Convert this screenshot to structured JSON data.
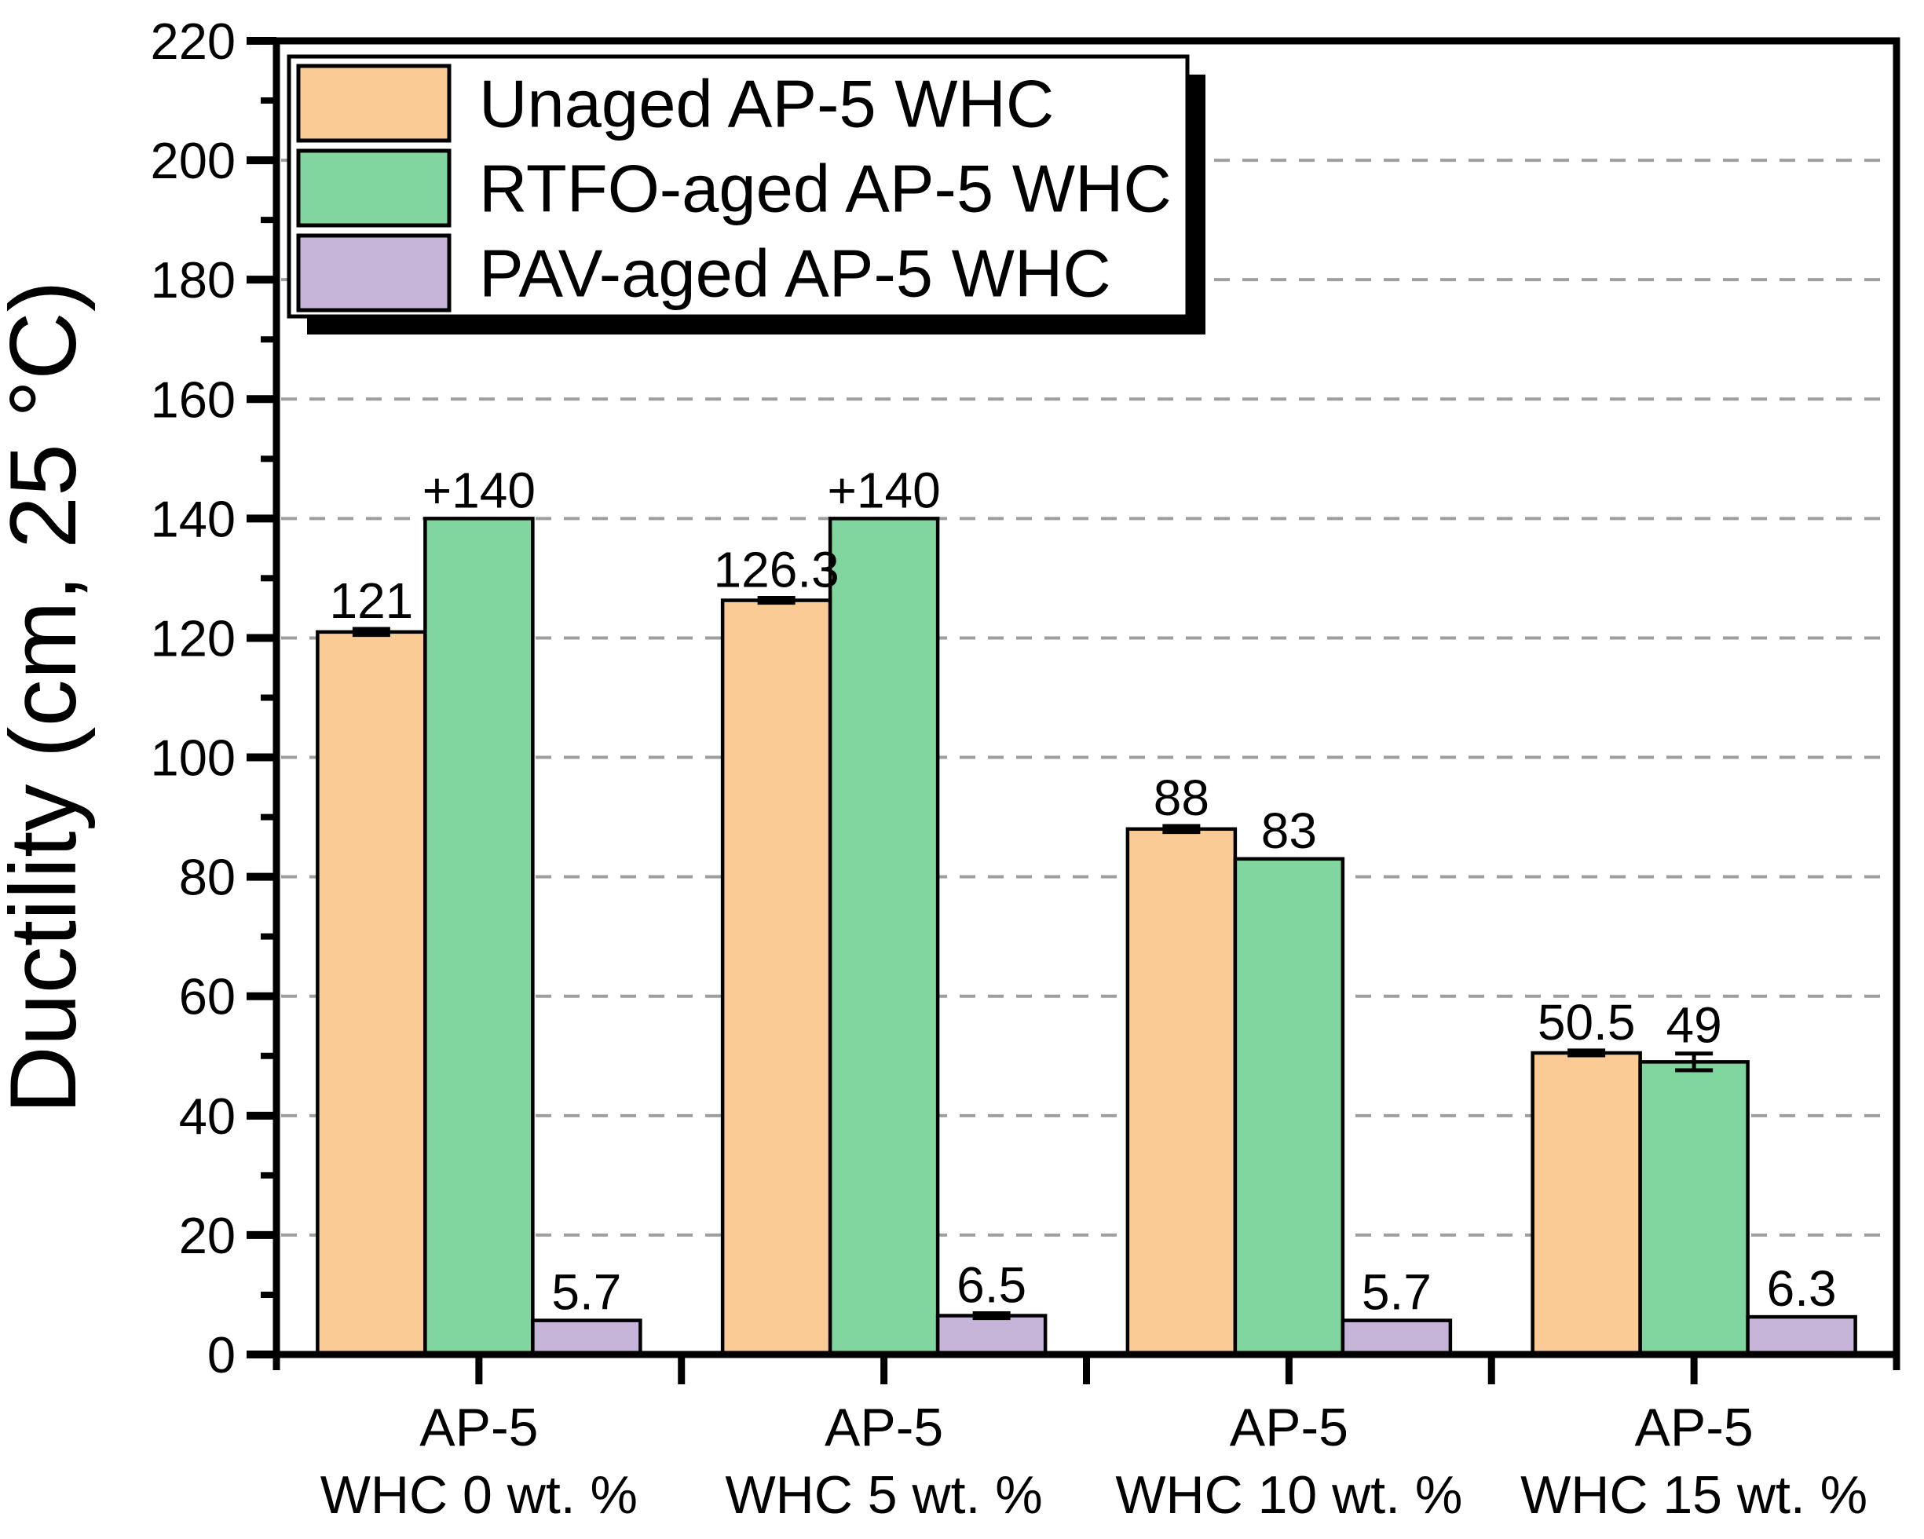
{
  "figure": {
    "background_color": "#FFFFFF",
    "description": "Grouped bar chart of ductility of AP-5 binder with WHC content under three aging states"
  },
  "chart_data": {
    "type": "bar",
    "title": "",
    "ylabel": "Ductility (cm, 25 °C)",
    "xlabel": "",
    "ylim": [
      0,
      220
    ],
    "ytick_major_step": 20,
    "ytick_minor_step": 10,
    "ytick_labels": [
      "0",
      "20",
      "40",
      "60",
      "80",
      "100",
      "120",
      "140",
      "160",
      "180",
      "200",
      "220"
    ],
    "grid": "horizontal dashed lines at major ticks",
    "grid_color": "#9E9E9E",
    "axis_color": "#000000",
    "legend_position": "top-left inside plot, white box, black border, black drop shadow",
    "categories": [
      {
        "line1": "AP-5",
        "line2": "WHC 0 wt. %"
      },
      {
        "line1": "AP-5",
        "line2": "WHC 5 wt. %"
      },
      {
        "line1": "AP-5",
        "line2": "WHC 10 wt. %"
      },
      {
        "line1": "AP-5",
        "line2": "WHC 15 wt. %"
      }
    ],
    "series": [
      {
        "name": "Unaged AP-5 WHC",
        "key": "unaged",
        "color": "#FBCB96",
        "border_color": "#000000",
        "values": [
          121,
          126.3,
          88,
          50.5
        ],
        "value_labels": [
          "121",
          "126.3",
          "88",
          "50.5"
        ],
        "errors": [
          0.5,
          0.4,
          0.5,
          0.4
        ]
      },
      {
        "name": "RTFO-aged AP-5 WHC",
        "key": "rtfo",
        "color": "#80D69E",
        "border_color": "#000000",
        "values": [
          140,
          140,
          83,
          49
        ],
        "value_labels": [
          "+140",
          "+140",
          "83",
          "49"
        ],
        "errors": [
          0,
          0,
          0,
          1.4
        ]
      },
      {
        "name": "PAV-aged AP-5 WHC",
        "key": "pav",
        "color": "#C7B4D9",
        "border_color": "#000000",
        "values": [
          5.7,
          6.5,
          5.7,
          6.3
        ],
        "value_labels": [
          "5.7",
          "6.5",
          "5.7",
          "6.3"
        ],
        "errors": [
          0,
          0.4,
          0,
          0
        ]
      }
    ]
  }
}
